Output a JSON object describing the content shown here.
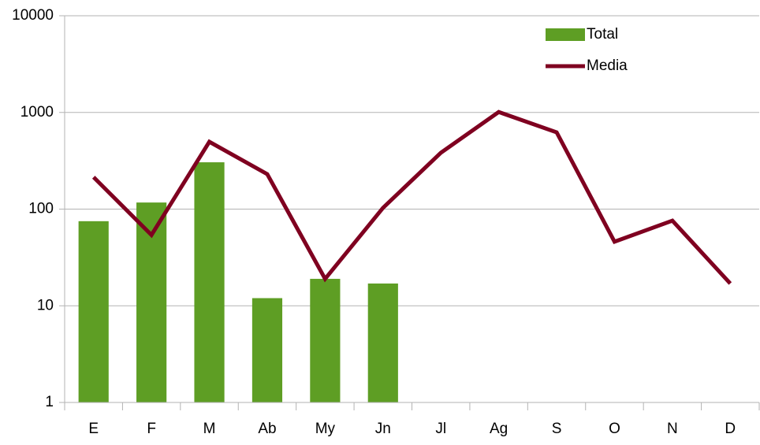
{
  "chart_data": {
    "type": "bar-line",
    "categories": [
      "E",
      "F",
      "M",
      "Ab",
      "My",
      "Jn",
      "Jl",
      "Ag",
      "S",
      "O",
      "N",
      "D"
    ],
    "series": [
      {
        "name": "Total",
        "type": "bar",
        "color": "#5e9e24",
        "values": [
          75,
          117,
          305,
          12,
          19,
          17,
          null,
          null,
          null,
          null,
          null,
          null
        ]
      },
      {
        "name": "Media",
        "type": "line",
        "color": "#7f0020",
        "values": [
          214,
          54,
          497,
          230,
          19,
          103,
          383,
          1010,
          623,
          46,
          76,
          17
        ]
      }
    ],
    "yscale": "log",
    "ylim": [
      1,
      10000
    ],
    "yticks": [
      1,
      10,
      100,
      1000,
      10000
    ],
    "grid": true,
    "legend": "top-right"
  }
}
